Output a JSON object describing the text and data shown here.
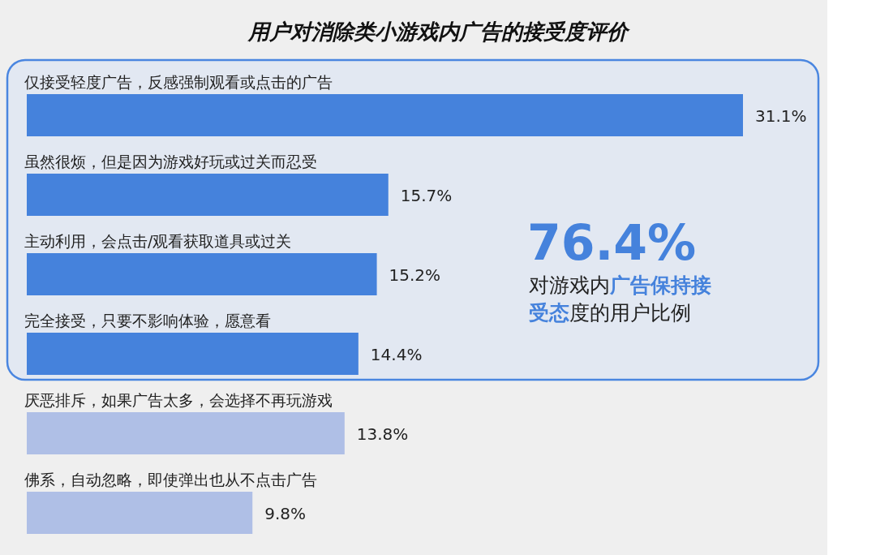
{
  "chart_data": {
    "type": "bar",
    "orientation": "horizontal",
    "title": "用户对消除类小游戏内广告的接受度评价",
    "categories": [
      "仅接受轻度广告，反感强制观看或点击的广告",
      "虽然很烦，但是因为游戏好玩或过关而忍受",
      "主动利用，会点击/观看获取道具或过关",
      "完全接受，只要不影响体验，愿意看",
      "厌恶排斥，如果广告太多，会选择不再玩游戏",
      "佛系，自动忽略，即使弹出也从不点击广告"
    ],
    "values": [
      31.1,
      15.7,
      15.2,
      14.4,
      13.8,
      9.8
    ],
    "value_labels": [
      "31.1%",
      "15.7%",
      "15.2%",
      "14.4%",
      "13.8%",
      "9.8%"
    ],
    "colors": [
      "#4582dc",
      "#4582dc",
      "#4582dc",
      "#4582dc",
      "#afbfe6",
      "#afbfe6"
    ],
    "annotations": [
      "76.4%",
      "对游戏内广告保持接受态度的用户比例"
    ]
  }
}
